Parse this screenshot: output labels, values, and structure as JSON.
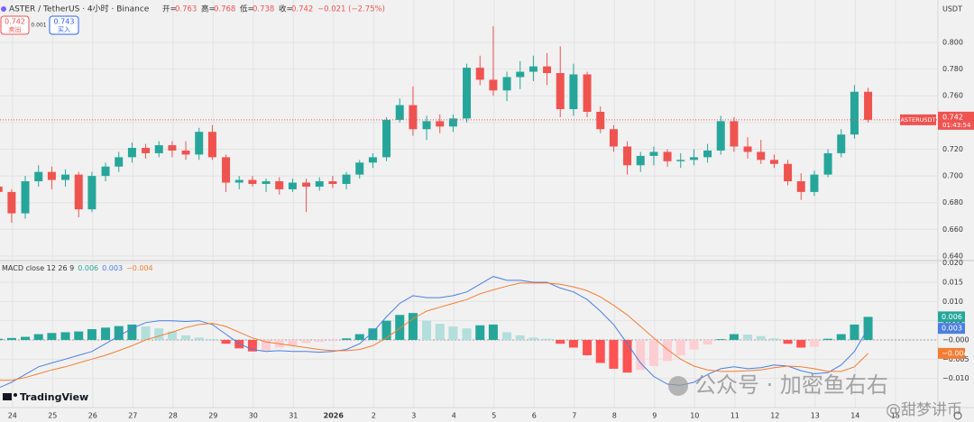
{
  "toolbar": {
    "symbol": "ASTER / TetherUS · 4小时 · Binance",
    "quote_labels": [
      "开=",
      "高=",
      "低=",
      "收="
    ],
    "quote_values": [
      0.763,
      0.768,
      0.738,
      0.742
    ],
    "change": "−0.021 (−2.75%)",
    "sell_price": 0.742,
    "sell_label": "卖出",
    "spread": 0.001,
    "buy_price": 0.743,
    "buy_label": "买入",
    "currency": "USDT",
    "price_tag_symbol": "ASTERUSDT",
    "countdown": "01:43:54",
    "brand": "TradingView"
  },
  "watermark": {
    "line1": "公众号 · 加密鱼右右",
    "line2": "@甜梦讲币"
  },
  "chart_data": [
    {
      "type": "candlestick",
      "x": [
        -0.35,
        -0.02,
        0.32,
        0.65,
        0.98,
        1.32,
        1.65,
        1.98,
        2.32,
        2.65,
        2.98,
        3.32,
        3.65,
        3.98,
        4.32,
        4.65,
        4.98,
        5.32,
        5.65,
        5.98,
        6.32,
        6.65,
        6.98,
        7.32,
        7.65,
        7.98,
        8.32,
        8.65,
        8.98,
        9.32,
        9.65,
        9.98,
        10.32,
        10.65,
        10.98,
        11.32,
        11.65,
        11.98,
        12.32,
        12.65,
        12.98,
        13.32,
        13.65,
        13.98,
        14.32,
        14.65,
        14.98,
        15.32,
        15.65,
        15.98,
        16.32,
        16.65,
        16.98,
        17.32,
        17.65,
        17.98,
        18.32,
        18.65,
        18.98,
        19.32,
        19.65,
        19.98,
        20.32,
        20.65,
        20.98,
        21.32
      ],
      "open": [
        0.692,
        0.688,
        0.672,
        0.696,
        0.703,
        0.697,
        0.701,
        0.675,
        0.7,
        0.707,
        0.714,
        0.721,
        0.717,
        0.723,
        0.719,
        0.716,
        0.733,
        0.714,
        0.695,
        0.697,
        0.694,
        0.696,
        0.69,
        0.695,
        0.692,
        0.696,
        0.694,
        0.701,
        0.71,
        0.714,
        0.742,
        0.753,
        0.735,
        0.741,
        0.737,
        0.743,
        0.781,
        0.772,
        0.764,
        0.774,
        0.778,
        0.782,
        0.777,
        0.75,
        0.776,
        0.748,
        0.735,
        0.722,
        0.708,
        0.715,
        0.718,
        0.711,
        0.712,
        0.714,
        0.719,
        0.741,
        0.722,
        0.718,
        0.712,
        0.709,
        0.696,
        0.688,
        0.701,
        0.717,
        0.731,
        0.763
      ],
      "high": [
        0.698,
        0.69,
        0.7,
        0.708,
        0.707,
        0.705,
        0.703,
        0.703,
        0.71,
        0.718,
        0.725,
        0.724,
        0.726,
        0.726,
        0.726,
        0.736,
        0.738,
        0.716,
        0.7,
        0.7,
        0.698,
        0.699,
        0.698,
        0.698,
        0.699,
        0.7,
        0.703,
        0.712,
        0.717,
        0.744,
        0.758,
        0.767,
        0.745,
        0.746,
        0.746,
        0.784,
        0.79,
        0.812,
        0.778,
        0.786,
        0.79,
        0.792,
        0.797,
        0.784,
        0.778,
        0.752,
        0.738,
        0.726,
        0.718,
        0.722,
        0.72,
        0.717,
        0.72,
        0.724,
        0.745,
        0.744,
        0.729,
        0.727,
        0.716,
        0.712,
        0.702,
        0.704,
        0.72,
        0.735,
        0.768,
        0.766
      ],
      "low": [
        0.683,
        0.665,
        0.668,
        0.692,
        0.69,
        0.692,
        0.669,
        0.673,
        0.696,
        0.703,
        0.71,
        0.713,
        0.714,
        0.714,
        0.712,
        0.712,
        0.712,
        0.688,
        0.69,
        0.692,
        0.688,
        0.686,
        0.688,
        0.673,
        0.689,
        0.691,
        0.69,
        0.698,
        0.706,
        0.711,
        0.74,
        0.73,
        0.727,
        0.732,
        0.733,
        0.74,
        0.768,
        0.76,
        0.756,
        0.765,
        0.771,
        0.768,
        0.744,
        0.745,
        0.744,
        0.732,
        0.718,
        0.701,
        0.703,
        0.708,
        0.707,
        0.706,
        0.708,
        0.71,
        0.716,
        0.718,
        0.713,
        0.709,
        0.706,
        0.693,
        0.682,
        0.685,
        0.699,
        0.714,
        0.728,
        0.74
      ],
      "close": [
        0.688,
        0.672,
        0.696,
        0.703,
        0.697,
        0.701,
        0.675,
        0.7,
        0.707,
        0.714,
        0.721,
        0.717,
        0.723,
        0.719,
        0.716,
        0.733,
        0.714,
        0.695,
        0.697,
        0.694,
        0.696,
        0.69,
        0.695,
        0.692,
        0.696,
        0.694,
        0.701,
        0.71,
        0.714,
        0.742,
        0.753,
        0.735,
        0.741,
        0.737,
        0.743,
        0.781,
        0.772,
        0.764,
        0.774,
        0.778,
        0.782,
        0.777,
        0.75,
        0.776,
        0.748,
        0.735,
        0.722,
        0.708,
        0.715,
        0.718,
        0.711,
        0.712,
        0.714,
        0.719,
        0.741,
        0.722,
        0.718,
        0.712,
        0.709,
        0.696,
        0.688,
        0.701,
        0.717,
        0.731,
        0.763,
        0.742
      ],
      "up_color": "#26a69a",
      "down_color": "#ef5350",
      "xlim": [
        -0.31,
        23.06
      ],
      "xticks": [
        {
          "value": 0,
          "label": "24"
        },
        {
          "value": 1,
          "label": "25"
        },
        {
          "value": 2,
          "label": "26"
        },
        {
          "value": 3,
          "label": "27"
        },
        {
          "value": 4,
          "label": "28"
        },
        {
          "value": 5,
          "label": "29"
        },
        {
          "value": 6,
          "label": "30"
        },
        {
          "value": 7,
          "label": "31"
        },
        {
          "value": 8,
          "label": "2026"
        },
        {
          "value": 9,
          "label": "2"
        },
        {
          "value": 10,
          "label": "3"
        },
        {
          "value": 11,
          "label": "4"
        },
        {
          "value": 12,
          "label": "5"
        },
        {
          "value": 13,
          "label": "6"
        },
        {
          "value": 14,
          "label": "7"
        },
        {
          "value": 15,
          "label": "8"
        },
        {
          "value": 16,
          "label": "9"
        },
        {
          "value": 17,
          "label": "10"
        },
        {
          "value": 18,
          "label": "11"
        },
        {
          "value": 19,
          "label": "12"
        },
        {
          "value": 20,
          "label": "13"
        },
        {
          "value": 21,
          "label": "14"
        },
        {
          "value": 22,
          "label": "15"
        }
      ],
      "ylim": [
        0.6373,
        0.8317
      ],
      "yticks": [
        {
          "value": 0.64,
          "label": "0.640"
        },
        {
          "value": 0.66,
          "label": "0.660"
        },
        {
          "value": 0.68,
          "label": "0.680"
        },
        {
          "value": 0.7,
          "label": "0.700"
        },
        {
          "value": 0.72,
          "label": "0.720"
        },
        {
          "value": 0.74,
          "label": "0.740"
        },
        {
          "value": 0.76,
          "label": "0.760"
        },
        {
          "value": 0.78,
          "label": "0.780"
        },
        {
          "value": 0.8,
          "label": "0.800"
        }
      ],
      "grid": true
    },
    {
      "type": "macd",
      "title": "MACD close 12 26 9",
      "series": [
        {
          "name": "Histogram",
          "kind": "bar",
          "colors": [
            "#26a69a",
            "#b2dfdb",
            "#ff5252",
            "#ffcdd2"
          ],
          "value_label": "0.006",
          "values": [
            0.0003,
            0.0005,
            0.0008,
            0.0015,
            0.0018,
            0.002,
            0.0022,
            0.0028,
            0.0032,
            0.0036,
            0.004,
            0.0035,
            0.003,
            0.0022,
            0.0012,
            0.0006,
            0.0002,
            -0.001,
            -0.0022,
            -0.003,
            -0.0028,
            -0.002,
            -0.0015,
            -0.0008,
            -0.0005,
            -0.0003,
            0.0004,
            0.0015,
            0.003,
            0.005,
            0.0065,
            0.007,
            0.005,
            0.0042,
            0.0035,
            0.003,
            0.0038,
            0.004,
            0.002,
            0.0012,
            0.0006,
            0.0003,
            -0.001,
            -0.002,
            -0.004,
            -0.006,
            -0.0075,
            -0.0085,
            -0.0078,
            -0.0068,
            -0.0055,
            -0.004,
            -0.0025,
            -0.0012,
            0.0002,
            0.0015,
            0.0014,
            0.001,
            0.0004,
            -0.001,
            -0.002,
            -0.0018,
            0.0003,
            0.0015,
            0.004,
            0.006
          ]
        },
        {
          "name": "MACD",
          "kind": "line",
          "color": "#4a7fe0",
          "value_label": "0.003",
          "values": [
            -0.0125,
            -0.011,
            -0.009,
            -0.007,
            -0.006,
            -0.005,
            -0.004,
            -0.003,
            -0.001,
            0.001,
            0.003,
            0.0045,
            0.005,
            0.005,
            0.0048,
            0.005,
            0.004,
            0.0015,
            -0.001,
            -0.0025,
            -0.003,
            -0.0028,
            -0.003,
            -0.003,
            -0.0032,
            -0.003,
            -0.0025,
            -0.001,
            0.002,
            0.006,
            0.0095,
            0.0115,
            0.011,
            0.011,
            0.0115,
            0.0125,
            0.0145,
            0.0165,
            0.0155,
            0.0155,
            0.015,
            0.015,
            0.0135,
            0.0125,
            0.0105,
            0.0075,
            0.004,
            -0.001,
            -0.006,
            -0.0095,
            -0.0115,
            -0.0118,
            -0.011,
            -0.009,
            -0.0075,
            -0.007,
            -0.0075,
            -0.0072,
            -0.0065,
            -0.0068,
            -0.008,
            -0.0088,
            -0.0085,
            -0.0065,
            -0.003,
            0.003
          ]
        },
        {
          "name": "Signal",
          "kind": "line",
          "color": "#f57c32",
          "value_label": "−0.004",
          "values": [
            -0.0105,
            -0.0105,
            -0.0098,
            -0.0088,
            -0.0078,
            -0.007,
            -0.006,
            -0.005,
            -0.004,
            -0.0028,
            -0.0015,
            0,
            0.001,
            0.002,
            0.0032,
            0.004,
            0.0043,
            0.0035,
            0.002,
            0.0005,
            -0.0005,
            -0.001,
            -0.0015,
            -0.002,
            -0.0025,
            -0.0028,
            -0.0028,
            -0.0025,
            -0.0015,
            0.0005,
            0.003,
            0.0055,
            0.0075,
            0.0085,
            0.0095,
            0.0105,
            0.012,
            0.013,
            0.014,
            0.0148,
            0.0148,
            0.0148,
            0.0145,
            0.0138,
            0.0128,
            0.0112,
            0.009,
            0.0065,
            0.0035,
            0.0005,
            -0.0025,
            -0.005,
            -0.0068,
            -0.0078,
            -0.0082,
            -0.0082,
            -0.008,
            -0.0078,
            -0.0072,
            -0.0068,
            -0.007,
            -0.0075,
            -0.0082,
            -0.0082,
            -0.007,
            -0.0035
          ]
        }
      ],
      "ylim": [
        -0.0176,
        0.0204
      ],
      "yticks": [
        {
          "value": 0.02,
          "label": "0.020"
        },
        {
          "value": 0.015,
          "label": "0.015"
        },
        {
          "value": 0.01,
          "label": "0.010"
        },
        {
          "value": 0.005,
          "label": "0.005"
        },
        {
          "value": 0,
          "label": "−0.000"
        },
        {
          "value": -0.005,
          "label": "−0.005"
        },
        {
          "value": -0.01,
          "label": "−0.010"
        }
      ],
      "grid": true
    }
  ]
}
